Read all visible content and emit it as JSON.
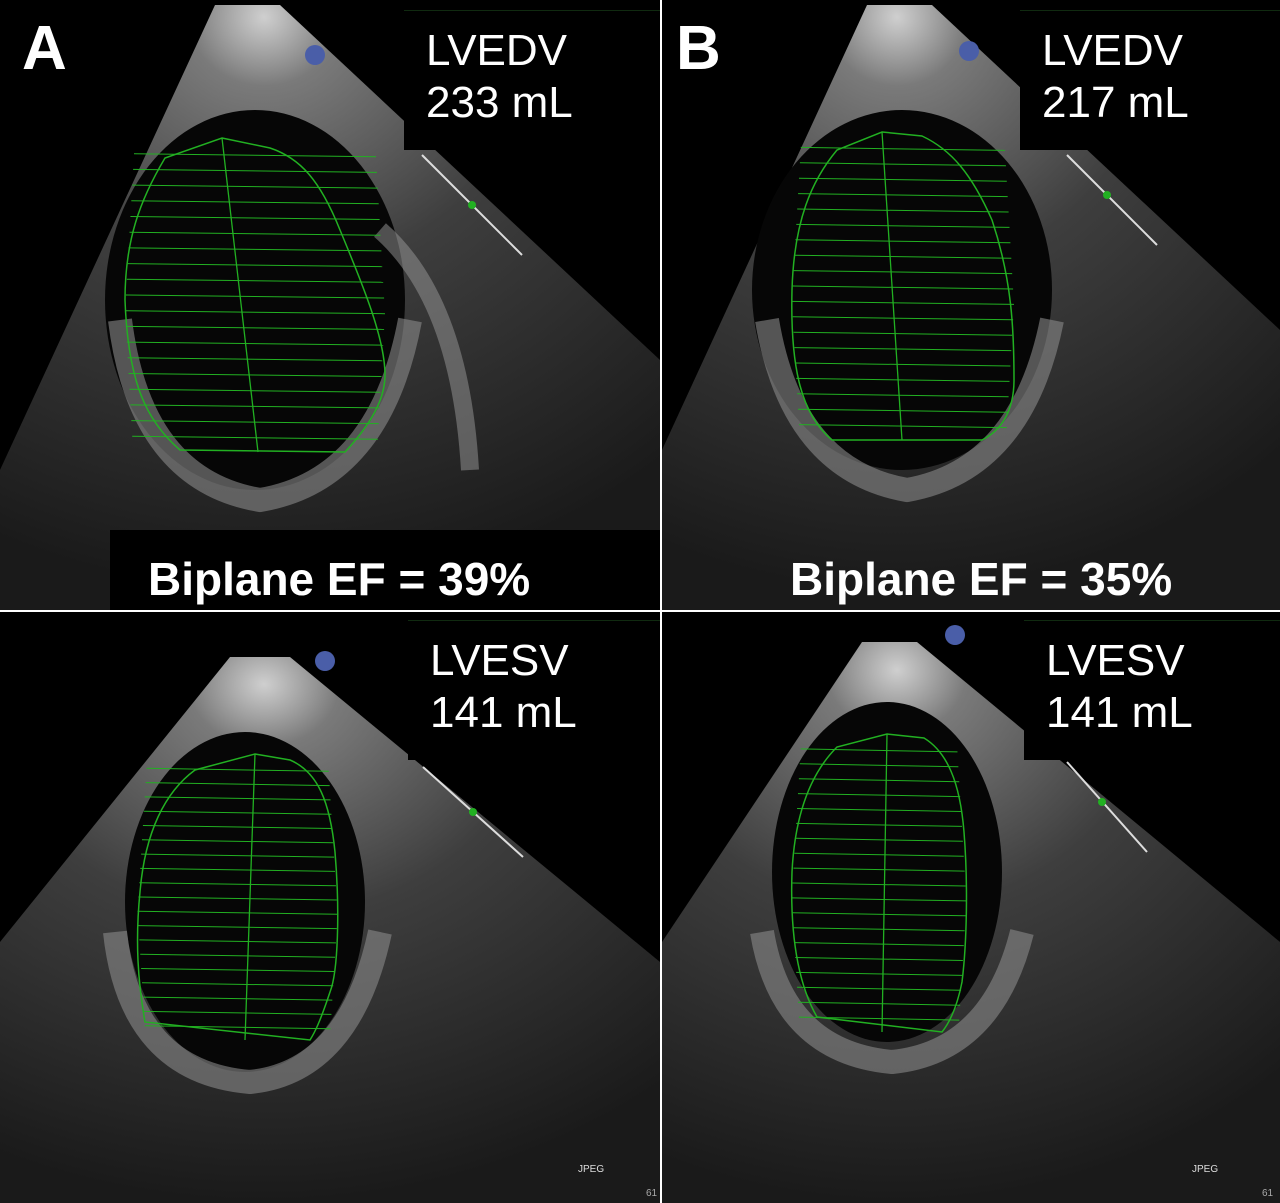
{
  "panels": [
    {
      "letter": "A",
      "diastole": {
        "label": "LVEDV",
        "value": "233 mL"
      },
      "systole": {
        "label": "LVESV",
        "value": "141 mL"
      },
      "ef": "Biplane EF = 39%"
    },
    {
      "letter": "B",
      "diastole": {
        "label": "LVEDV",
        "value": "217 mL"
      },
      "systole": {
        "label": "LVESV",
        "value": "141 mL"
      },
      "ef": "Biplane EF = 35%"
    }
  ],
  "watermark": "JPEG",
  "frame_marker": "61",
  "probe_marker": "P",
  "colors": {
    "trace": "#22b022",
    "background": "#000000",
    "text": "#ffffff",
    "probe": "#4a5ea8"
  }
}
